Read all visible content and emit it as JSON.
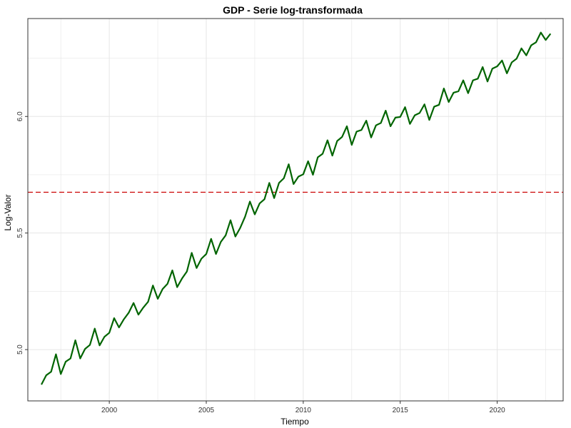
{
  "chart_data": {
    "type": "line",
    "title": "GDP - Serie log-transformada",
    "xlabel": "Tiempo",
    "ylabel": "Log-Valor",
    "xlim": [
      1995.8,
      2023.4
    ],
    "ylim": [
      4.78,
      6.42
    ],
    "x_ticks": [
      2000,
      2005,
      2010,
      2015,
      2020
    ],
    "y_ticks": [
      5.0,
      5.5,
      6.0
    ],
    "x_tick_labels": [
      "2000",
      "2005",
      "2010",
      "2015",
      "2020"
    ],
    "y_tick_labels": [
      "5.0",
      "5.5",
      "6.0"
    ],
    "grid": true,
    "hline": {
      "y": 5.675,
      "style": "dashed",
      "color": "#cc0000"
    },
    "colors": {
      "series": "#006400",
      "hline": "#cc0000",
      "grid": "#e6e6e6",
      "border": "#333333"
    },
    "series": [
      {
        "start": 1996.5,
        "step": 0.25,
        "values": [
          4.85,
          4.89,
          4.905,
          4.98,
          4.895,
          4.948,
          4.962,
          5.04,
          4.962,
          5.003,
          5.02,
          5.09,
          5.018,
          5.055,
          5.072,
          5.135,
          5.095,
          5.13,
          5.158,
          5.2,
          5.15,
          5.18,
          5.205,
          5.275,
          5.218,
          5.26,
          5.282,
          5.34,
          5.268,
          5.305,
          5.335,
          5.415,
          5.35,
          5.39,
          5.41,
          5.475,
          5.41,
          5.462,
          5.49,
          5.555,
          5.485,
          5.522,
          5.57,
          5.635,
          5.58,
          5.627,
          5.645,
          5.715,
          5.65,
          5.715,
          5.735,
          5.795,
          5.71,
          5.742,
          5.752,
          5.808,
          5.75,
          5.825,
          5.84,
          5.898,
          5.832,
          5.895,
          5.912,
          5.958,
          5.878,
          5.935,
          5.942,
          5.982,
          5.91,
          5.962,
          5.972,
          6.025,
          5.958,
          5.995,
          5.998,
          6.04,
          5.968,
          6.005,
          6.015,
          6.052,
          5.985,
          6.042,
          6.05,
          6.12,
          6.062,
          6.102,
          6.108,
          6.155,
          6.1,
          6.155,
          6.162,
          6.212,
          6.15,
          6.205,
          6.215,
          6.24,
          6.185,
          6.232,
          6.248,
          6.292,
          6.262,
          6.305,
          6.318,
          6.36,
          6.328,
          6.355
        ]
      }
    ]
  }
}
